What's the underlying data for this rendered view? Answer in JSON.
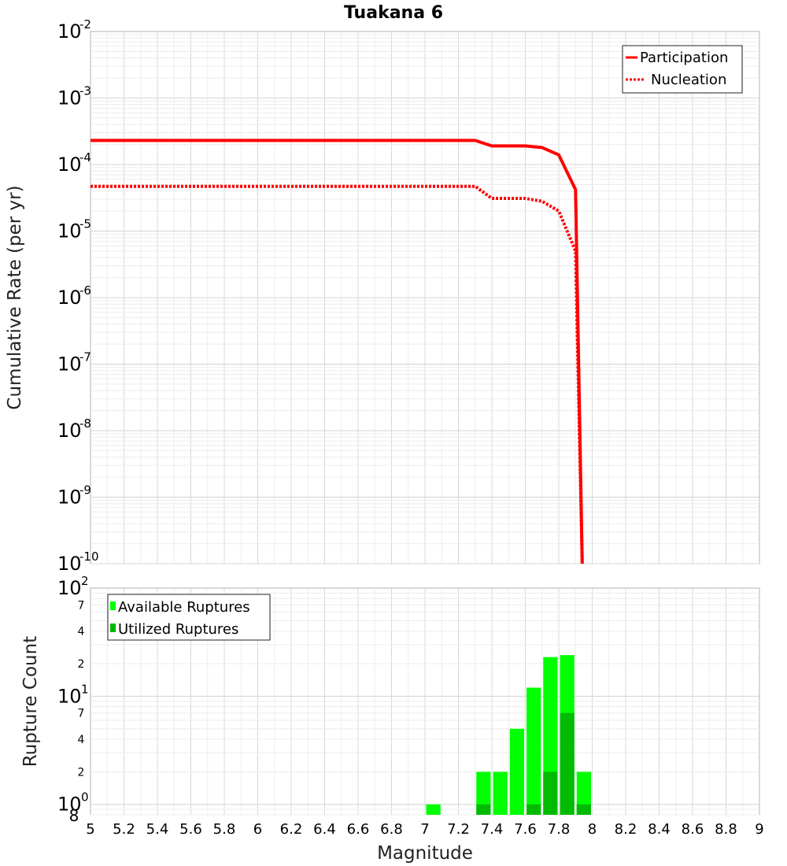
{
  "chart_data": [
    {
      "type": "line",
      "title": "Tuakana 6",
      "xlabel": "",
      "ylabel": "Cumulative Rate (per yr)",
      "xlim": [
        5,
        9
      ],
      "ylim": [
        1e-10,
        0.01
      ],
      "yscale": "log",
      "y_tick_exponents": [
        "-2",
        "-3",
        "-4",
        "-5",
        "-6",
        "-7",
        "-8",
        "-9",
        "-10"
      ],
      "y_tick_base": "10",
      "legend": {
        "position": "top-right",
        "entries": [
          {
            "label": "Participation",
            "color": "#ff0000",
            "style": "solid"
          },
          {
            "label": "Nucleation",
            "color": "#ff0000",
            "style": "dotted"
          }
        ]
      },
      "series": [
        {
          "name": "Participation",
          "color": "#ff0000",
          "style": "solid",
          "x": [
            5.0,
            7.3,
            7.4,
            7.5,
            7.6,
            7.7,
            7.8,
            7.9,
            7.94
          ],
          "y": [
            0.00023,
            0.00023,
            0.00019,
            0.00019,
            0.00019,
            0.00018,
            0.00014,
            4.2e-05,
            1e-10
          ]
        },
        {
          "name": "Nucleation",
          "color": "#ff0000",
          "style": "dotted",
          "x": [
            5.0,
            7.3,
            7.4,
            7.5,
            7.6,
            7.7,
            7.8,
            7.9,
            7.94
          ],
          "y": [
            4.7e-05,
            4.7e-05,
            3.1e-05,
            3.1e-05,
            3.1e-05,
            2.8e-05,
            2e-05,
            5e-06,
            1e-10
          ]
        }
      ]
    },
    {
      "type": "bar",
      "title": "",
      "xlabel": "Magnitude",
      "ylabel": "Rupture Count",
      "xlim": [
        5,
        9
      ],
      "ylim": [
        0.8,
        100
      ],
      "yscale": "log",
      "x_tick_labels": [
        "5",
        "5.2",
        "5.4",
        "5.6",
        "5.8",
        "6",
        "6.2",
        "6.4",
        "6.6",
        "6.8",
        "7",
        "7.2",
        "7.4",
        "7.6",
        "7.8",
        "8",
        "8.2",
        "8.4",
        "8.6",
        "8.8",
        "9"
      ],
      "y_tick_base": "10",
      "y_major_exponents": [
        "2",
        "1",
        "0"
      ],
      "y_minor_labels": [
        "7",
        "4",
        "2",
        "7",
        "4",
        "2",
        "8"
      ],
      "legend": {
        "position": "top-left",
        "entries": [
          {
            "label": "Available Ruptures",
            "color": "#00ff00"
          },
          {
            "label": "Utilized Ruptures",
            "color": "#00bb00"
          }
        ]
      },
      "bin_width": 0.1,
      "series": [
        {
          "name": "Available Ruptures",
          "color": "#00ff00",
          "x": [
            7.05,
            7.35,
            7.45,
            7.55,
            7.65,
            7.75,
            7.85,
            7.95
          ],
          "values": [
            1,
            2,
            2,
            5,
            12,
            23,
            24,
            2
          ]
        },
        {
          "name": "Utilized Ruptures",
          "color": "#00bb00",
          "x": [
            7.35,
            7.65,
            7.75,
            7.85,
            7.95
          ],
          "values": [
            1,
            1,
            2,
            7,
            1
          ]
        }
      ]
    }
  ]
}
